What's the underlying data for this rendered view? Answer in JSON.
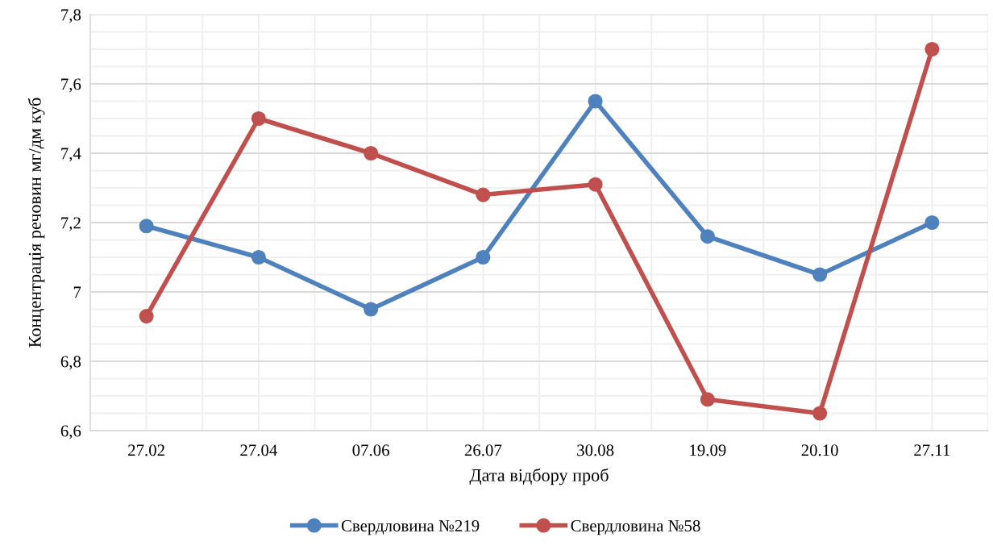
{
  "chart_data": {
    "type": "line",
    "xlabel": "Дата відбору проб",
    "ylabel": "Концентрація речовин мг/дм куб",
    "categories": [
      "27.02",
      "27.04",
      "07.06",
      "26.07",
      "30.08",
      "19.09",
      "20.10",
      "27.11"
    ],
    "series": [
      {
        "name": "Свердловина №219",
        "color": "#4f81bd",
        "values": [
          7.19,
          7.1,
          6.95,
          7.1,
          7.55,
          7.16,
          7.05,
          7.2
        ]
      },
      {
        "name": "Свердловина №58",
        "color": "#c0504d",
        "values": [
          6.93,
          7.5,
          7.4,
          7.28,
          7.31,
          6.69,
          6.65,
          7.7
        ]
      }
    ],
    "ylim": [
      6.6,
      7.8
    ],
    "yticks": [
      {
        "value": 6.6,
        "label": "6,6"
      },
      {
        "value": 6.65,
        "label": null
      },
      {
        "value": 6.7,
        "label": null
      },
      {
        "value": 6.75,
        "label": null
      },
      {
        "value": 6.8,
        "label": "6,8"
      },
      {
        "value": 6.85,
        "label": null
      },
      {
        "value": 6.9,
        "label": null
      },
      {
        "value": 6.95,
        "label": null
      },
      {
        "value": 7,
        "label": "7"
      },
      {
        "value": 7.05,
        "label": null
      },
      {
        "value": 7.1,
        "label": null
      },
      {
        "value": 7.15,
        "label": null
      },
      {
        "value": 7.2,
        "label": "7,2"
      },
      {
        "value": 7.25,
        "label": null
      },
      {
        "value": 7.3,
        "label": null
      },
      {
        "value": 7.35,
        "label": null
      },
      {
        "value": 7.4,
        "label": "7,4"
      },
      {
        "value": 7.45,
        "label": null
      },
      {
        "value": 7.5,
        "label": null
      },
      {
        "value": 7.55,
        "label": null
      },
      {
        "value": 7.6,
        "label": "7,6"
      },
      {
        "value": 7.65,
        "label": null
      },
      {
        "value": 7.7,
        "label": null
      },
      {
        "value": 7.75,
        "label": null
      },
      {
        "value": 7.8,
        "label": "7,8"
      }
    ],
    "grid": true,
    "legend": "bottom",
    "marker": "circle",
    "line_style": "solid"
  }
}
